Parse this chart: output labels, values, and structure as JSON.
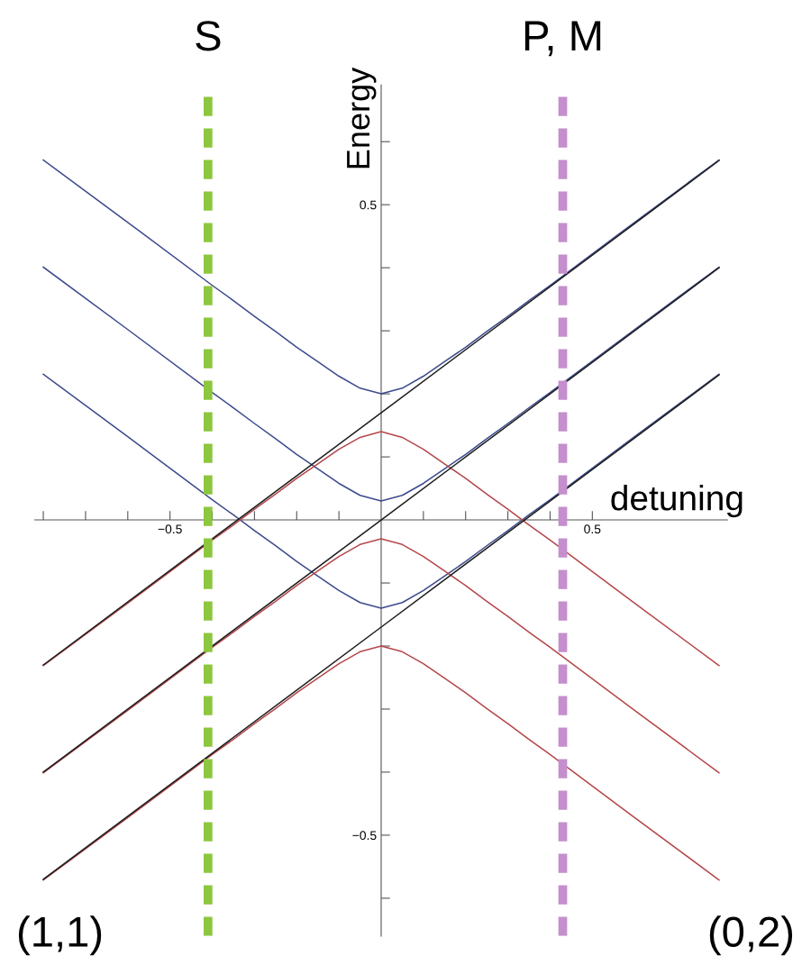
{
  "chart_data": {
    "type": "line",
    "xlabel": "detuning",
    "ylabel": "Energy",
    "xlim": [
      -0.82,
      0.82
    ],
    "ylim": [
      -0.66,
      0.69
    ],
    "xticks": [
      {
        "value": -0.8,
        "label": null
      },
      {
        "value": -0.7,
        "label": null
      },
      {
        "value": -0.6,
        "label": null
      },
      {
        "value": -0.5,
        "label": "−0.5"
      },
      {
        "value": -0.4,
        "label": null
      },
      {
        "value": -0.3,
        "label": null
      },
      {
        "value": -0.2,
        "label": null
      },
      {
        "value": -0.1,
        "label": null
      },
      {
        "value": 0.1,
        "label": null
      },
      {
        "value": 0.2,
        "label": null
      },
      {
        "value": 0.3,
        "label": null
      },
      {
        "value": 0.4,
        "label": null
      },
      {
        "value": 0.5,
        "label": "0.5"
      }
    ],
    "yticks": [
      {
        "value": -0.6,
        "label": null
      },
      {
        "value": -0.5,
        "label": "−0.5"
      },
      {
        "value": -0.4,
        "label": null
      },
      {
        "value": -0.3,
        "label": null
      },
      {
        "value": -0.2,
        "label": null
      },
      {
        "value": -0.1,
        "label": null
      },
      {
        "value": 0.1,
        "label": null
      },
      {
        "value": 0.2,
        "label": null
      },
      {
        "value": 0.3,
        "label": null
      },
      {
        "value": 0.4,
        "label": null
      },
      {
        "value": 0.5,
        "label": "0.5"
      },
      {
        "value": 0.6,
        "label": null
      }
    ],
    "x": [
      -0.8,
      -0.6,
      -0.4,
      -0.35,
      -0.3,
      -0.25,
      -0.2,
      -0.15,
      -0.1,
      -0.05,
      0,
      0.05,
      0.1,
      0.15,
      0.2,
      0.25,
      0.3,
      0.35,
      0.4,
      0.6,
      0.8
    ],
    "series": [
      {
        "color": "#3d4a8c",
        "values": [
          0.571,
          0.472,
          0.372,
          0.348,
          0.323,
          0.299,
          0.274,
          0.251,
          0.228,
          0.209,
          0.2,
          0.209,
          0.228,
          0.251,
          0.274,
          0.299,
          0.323,
          0.348,
          0.372,
          0.472,
          0.571
        ]
      },
      {
        "color": "#3d4a8c",
        "values": [
          0.401,
          0.302,
          0.202,
          0.178,
          0.153,
          0.129,
          0.104,
          0.081,
          0.058,
          0.039,
          0.03,
          0.039,
          0.058,
          0.081,
          0.104,
          0.129,
          0.153,
          0.178,
          0.202,
          0.302,
          0.401
        ]
      },
      {
        "color": "#3d4a8c",
        "values": [
          0.231,
          0.132,
          0.032,
          0.008,
          -0.017,
          -0.041,
          -0.066,
          -0.089,
          -0.112,
          -0.131,
          -0.14,
          -0.131,
          -0.112,
          -0.089,
          -0.066,
          -0.041,
          -0.017,
          0.008,
          0.032,
          0.132,
          0.231
        ]
      },
      {
        "color": "#b5474a",
        "values": [
          -0.231,
          -0.132,
          -0.032,
          -0.008,
          0.017,
          0.041,
          0.066,
          0.089,
          0.112,
          0.131,
          0.14,
          0.131,
          0.112,
          0.089,
          0.066,
          0.041,
          0.017,
          -0.008,
          -0.032,
          -0.132,
          -0.231
        ]
      },
      {
        "color": "#b5474a",
        "values": [
          -0.401,
          -0.302,
          -0.202,
          -0.178,
          -0.153,
          -0.129,
          -0.104,
          -0.081,
          -0.058,
          -0.039,
          -0.03,
          -0.039,
          -0.058,
          -0.081,
          -0.104,
          -0.129,
          -0.153,
          -0.178,
          -0.202,
          -0.302,
          -0.401
        ]
      },
      {
        "color": "#b5474a",
        "values": [
          -0.571,
          -0.472,
          -0.372,
          -0.348,
          -0.323,
          -0.299,
          -0.274,
          -0.251,
          -0.228,
          -0.209,
          -0.2,
          -0.209,
          -0.228,
          -0.251,
          -0.274,
          -0.299,
          -0.323,
          -0.348,
          -0.372,
          -0.472,
          -0.571
        ]
      },
      {
        "color": "#1e1e1e",
        "x": [
          -0.8,
          0,
          0.8
        ],
        "values": [
          -0.23,
          0.17,
          0.57
        ]
      },
      {
        "color": "#1e1e1e",
        "x": [
          -0.8,
          0,
          0.8
        ],
        "values": [
          -0.4,
          0,
          0.4
        ]
      },
      {
        "color": "#1e1e1e",
        "x": [
          -0.8,
          0,
          0.8
        ],
        "values": [
          -0.57,
          -0.17,
          0.23
        ]
      }
    ],
    "ref_lines": [
      {
        "axis": "x",
        "value": -0.41,
        "label": "S",
        "color": "#8dc63f",
        "line_style": "dashed"
      },
      {
        "axis": "x",
        "value": 0.43,
        "label": "P, M",
        "color": "#c48fcc",
        "line_style": "dashed"
      }
    ],
    "annotations": [
      "(1,1)",
      "(0,2)"
    ],
    "line_style": "solid",
    "marker": "none",
    "grid": false,
    "legend": false
  }
}
